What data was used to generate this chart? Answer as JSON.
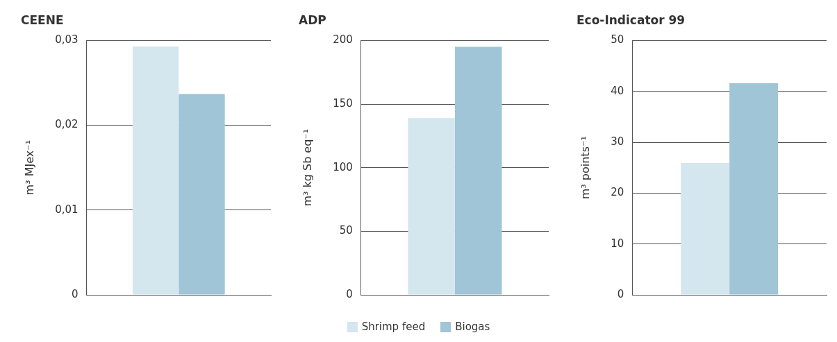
{
  "chart_data": [
    {
      "type": "bar",
      "title": "CEENE",
      "ylabel": "m³ MJex⁻¹",
      "categories": [
        null
      ],
      "ylim": [
        0,
        0.03
      ],
      "yticks": [
        {
          "value": 0,
          "label": "0"
        },
        {
          "value": 0.01,
          "label": "0,01"
        },
        {
          "value": 0.02,
          "label": "0,02"
        },
        {
          "value": 0.03,
          "label": "0,03"
        }
      ],
      "grid": "y",
      "legend": "bottom",
      "series": [
        {
          "name": "Shrimp feed",
          "color": "#d4e6ee",
          "values": [
            0.0293
          ]
        },
        {
          "name": "Biogas",
          "color": "#9fc5d6",
          "values": [
            0.0237
          ]
        }
      ]
    },
    {
      "type": "bar",
      "title": "ADP",
      "ylabel": "m³ kg Sb eq⁻¹",
      "categories": [
        null
      ],
      "ylim": [
        0,
        200
      ],
      "yticks": [
        0,
        50,
        100,
        150,
        200
      ],
      "grid": "y",
      "series": [
        {
          "color": "#d4e6ee",
          "values": [
            139
          ]
        },
        {
          "color": "#9fc5d6",
          "values": [
            195
          ]
        }
      ]
    },
    {
      "type": "bar",
      "title": "Eco-Indicator 99",
      "ylabel": "m³ points⁻¹",
      "categories": [
        null
      ],
      "ylim": [
        0,
        50
      ],
      "yticks": [
        0,
        10,
        20,
        30,
        40,
        50
      ],
      "grid": "y",
      "series": [
        {
          "color": "#d4e6ee",
          "values": [
            25.9
          ]
        },
        {
          "color": "#9fc5d6",
          "values": [
            41.6
          ]
        }
      ]
    }
  ]
}
